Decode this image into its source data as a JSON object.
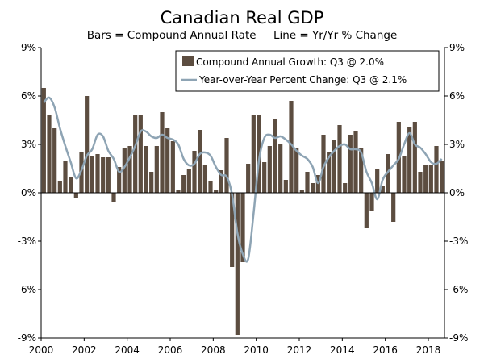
{
  "chart_data": {
    "type": "bar+line",
    "title": "Canadian Real GDP",
    "subtitle": "Bars = Compound Annual Rate     Line = Yr/Yr % Change",
    "ylim": [
      -9,
      9
    ],
    "yticks": [
      9,
      6,
      3,
      0,
      -3,
      -6,
      -9
    ],
    "ytick_labels": [
      "9%",
      "6%",
      "3%",
      "0%",
      "-3%",
      "-6%",
      "-9%"
    ],
    "xlim": [
      2000.0,
      2018.75
    ],
    "xticks": [
      2000,
      2002,
      2004,
      2006,
      2008,
      2010,
      2012,
      2014,
      2016,
      2018
    ],
    "xtick_labels": [
      "2000",
      "2002",
      "2004",
      "2006",
      "2008",
      "2010",
      "2012",
      "2014",
      "2016",
      "2018"
    ],
    "legend": [
      {
        "kind": "bar",
        "label": "Compound Annual Growth: Q3 @ 2.0%"
      },
      {
        "kind": "line",
        "label": "Year-over-Year Percent Change: Q3 @ 2.1%"
      }
    ],
    "legend_position": "top-right",
    "colors": {
      "bar": "#5c4d40",
      "line": "#8ea4b4",
      "axis": "#000000"
    },
    "x_start": 2000.0,
    "quarter_step": 0.25,
    "series": [
      {
        "name": "Compound Annual Growth",
        "kind": "bar",
        "values": [
          6.5,
          4.8,
          4.0,
          0.7,
          2.0,
          1.0,
          -0.3,
          2.5,
          6.0,
          2.3,
          2.4,
          2.2,
          2.2,
          -0.6,
          1.6,
          2.8,
          2.9,
          4.8,
          4.8,
          2.9,
          1.3,
          2.9,
          5.0,
          4.0,
          3.2,
          0.2,
          1.1,
          1.5,
          2.6,
          3.9,
          1.7,
          0.7,
          0.2,
          1.4,
          3.4,
          -4.6,
          -8.8,
          -4.3,
          1.8,
          4.8,
          4.8,
          1.9,
          2.9,
          4.6,
          3.0,
          0.8,
          5.7,
          2.8,
          0.2,
          1.3,
          0.6,
          1.1,
          3.6,
          2.5,
          3.3,
          4.2,
          0.6,
          3.6,
          3.8,
          2.8,
          -2.2,
          -1.1,
          1.5,
          0.4,
          2.4,
          -1.8,
          4.4,
          2.3,
          4.1,
          4.4,
          1.3,
          1.7,
          1.7,
          2.9,
          2.0
        ]
      },
      {
        "name": "Year-over-Year Percent Change",
        "kind": "line",
        "values": [
          5.6,
          5.9,
          5.3,
          4.0,
          2.9,
          1.9,
          0.9,
          1.4,
          2.3,
          2.7,
          3.6,
          3.5,
          2.6,
          2.1,
          1.3,
          1.6,
          2.2,
          2.9,
          3.8,
          3.8,
          3.5,
          3.4,
          3.6,
          3.4,
          3.3,
          3.0,
          2.1,
          1.7,
          1.8,
          2.4,
          2.5,
          2.3,
          1.6,
          1.1,
          1.0,
          -0.1,
          -2.5,
          -3.8,
          -4.1,
          -1.3,
          2.0,
          3.4,
          3.6,
          3.4,
          3.5,
          3.3,
          3.0,
          2.6,
          2.3,
          2.1,
          1.6,
          0.6,
          1.6,
          2.2,
          2.6,
          2.9,
          3.0,
          2.7,
          2.7,
          2.5,
          1.3,
          0.6,
          -0.4,
          0.8,
          1.3,
          1.7,
          2.1,
          3.0,
          3.7,
          3.0,
          2.8,
          2.4,
          1.9,
          1.8,
          2.1
        ]
      }
    ]
  }
}
